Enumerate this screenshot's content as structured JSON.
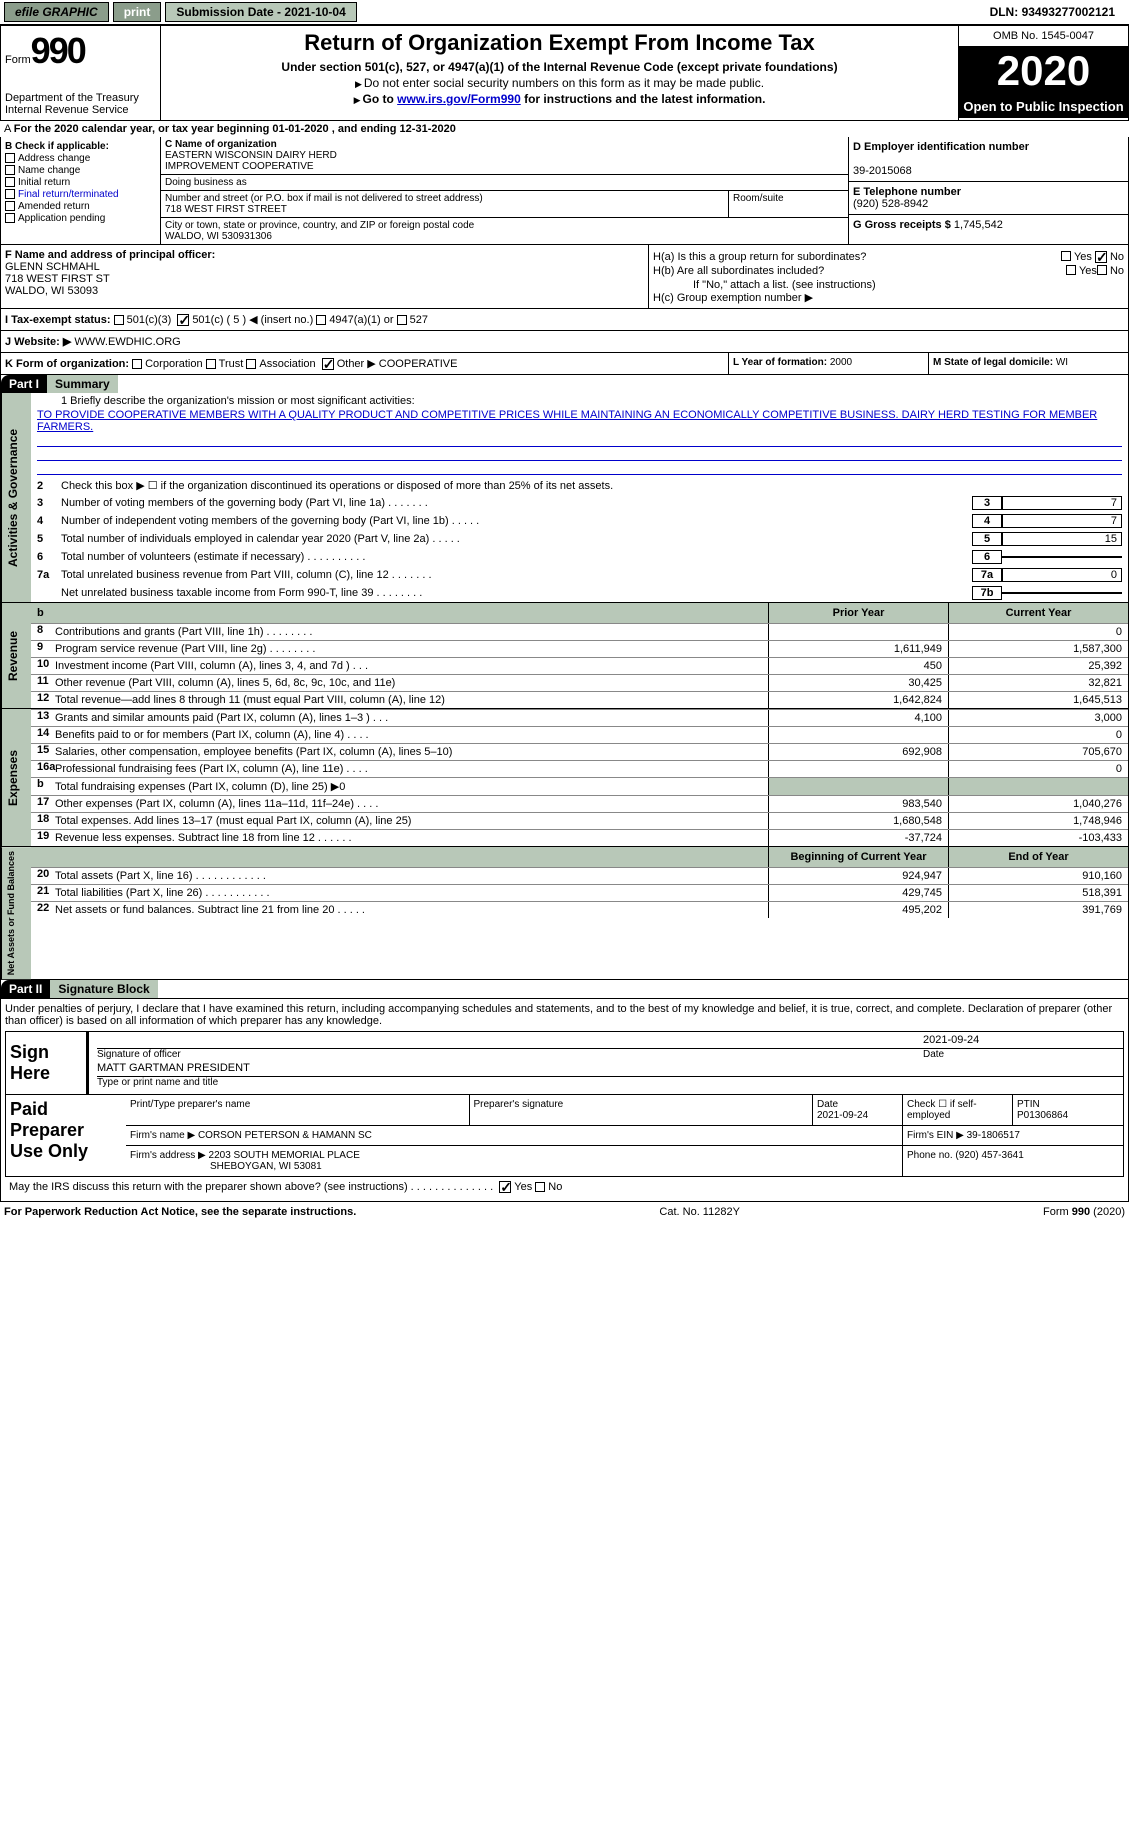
{
  "topbar": {
    "efile": "efile GRAPHIC",
    "print": "print",
    "subdate_label": "Submission Date - ",
    "subdate": "2021-10-04",
    "dln_label": "DLN: ",
    "dln": "93493277002121"
  },
  "header": {
    "form_prefix": "Form",
    "form_num": "990",
    "dept1": "Department of the Treasury",
    "dept2": "Internal Revenue Service",
    "title": "Return of Organization Exempt From Income Tax",
    "subtitle": "Under section 501(c), 527, or 4947(a)(1) of the Internal Revenue Code (except private foundations)",
    "instr1": "Do not enter social security numbers on this form as it may be made public.",
    "instr2_pre": "Go to ",
    "instr2_link": "www.irs.gov/Form990",
    "instr2_post": " for instructions and the latest information.",
    "omb": "OMB No. 1545-0047",
    "year": "2020",
    "inspection": "Open to Public Inspection"
  },
  "lineA": "For the 2020 calendar year, or tax year beginning 01-01-2020    , and ending 12-31-2020",
  "boxB": {
    "title": "B Check if applicable:",
    "opts": [
      "Address change",
      "Name change",
      "Initial return",
      "Final return/terminated",
      "Amended return",
      "Application pending"
    ]
  },
  "boxC": {
    "name_label": "C Name of organization",
    "name1": "EASTERN WISCONSIN DAIRY HERD",
    "name2": "IMPROVEMENT COOPERATIVE",
    "dba_label": "Doing business as",
    "addr_label": "Number and street (or P.O. box if mail is not delivered to street address)",
    "addr": "718 WEST FIRST STREET",
    "room_label": "Room/suite",
    "city_label": "City or town, state or province, country, and ZIP or foreign postal code",
    "city": "WALDO, WI  530931306"
  },
  "boxD": {
    "ein_label": "D Employer identification number",
    "ein": "39-2015068",
    "tel_label": "E Telephone number",
    "tel": "(920) 528-8942",
    "gross_label": "G Gross receipts $ ",
    "gross": "1,745,542"
  },
  "boxF": {
    "label": "F  Name and address of principal officer:",
    "name": "GLENN SCHMAHL",
    "addr1": "718 WEST FIRST ST",
    "addr2": "WALDO, WI  53093"
  },
  "boxH": {
    "ha": "H(a)  Is this a group return for subordinates?",
    "hb": "H(b)  Are all subordinates included?",
    "hb_note": "If \"No,\" attach a list. (see instructions)",
    "hc": "H(c)  Group exemption number ▶",
    "yes": "Yes",
    "no": "No"
  },
  "taxI": {
    "label": "I    Tax-exempt status:",
    "o1": "501(c)(3)",
    "o2": "501(c) ( 5 ) ◀ (insert no.)",
    "o3": "4947(a)(1) or",
    "o4": "527"
  },
  "lineJ": {
    "label": "J   Website: ▶",
    "val": " WWW.EWDHIC.ORG"
  },
  "lineK": {
    "label": "K Form of organization:",
    "o1": "Corporation",
    "o2": "Trust",
    "o3": "Association",
    "o4": "Other ▶",
    "val": "COOPERATIVE"
  },
  "boxL": {
    "label": "L Year of formation: ",
    "val": "2000"
  },
  "boxM": {
    "label": "M State of legal domicile: ",
    "val": "WI"
  },
  "part1": {
    "hdr": "Part I",
    "title": "Summary"
  },
  "mission": {
    "q1_label": "1   Briefly describe the organization's mission or most significant activities:",
    "text": "TO PROVIDE COOPERATIVE MEMBERS WITH A QUALITY PRODUCT AND COMPETITIVE PRICES WHILE MAINTAINING AN ECONOMICALLY COMPETITIVE BUSINESS. DAIRY HERD TESTING FOR MEMBER FARMERS."
  },
  "gov_lines": [
    {
      "n": "2",
      "t": "Check this box ▶ ☐  if the organization discontinued its operations or disposed of more than 25% of its net assets.",
      "box": "",
      "val": ""
    },
    {
      "n": "3",
      "t": "Number of voting members of the governing body (Part VI, line 1a)   .    .    .    .    .    .    .",
      "box": "3",
      "val": "7"
    },
    {
      "n": "4",
      "t": "Number of independent voting members of the governing body (Part VI, line 1b)   .    .    .    .    .",
      "box": "4",
      "val": "7"
    },
    {
      "n": "5",
      "t": "Total number of individuals employed in calendar year 2020 (Part V, line 2a)   .    .    .    .    .",
      "box": "5",
      "val": "15"
    },
    {
      "n": "6",
      "t": "Total number of volunteers (estimate if necessary)   .    .    .    .    .    .    .    .    .    .",
      "box": "6",
      "val": ""
    },
    {
      "n": "7a",
      "t": "Total unrelated business revenue from Part VIII, column (C), line 12   .    .    .    .    .    .    .",
      "box": "7a",
      "val": "0"
    },
    {
      "n": "",
      "t": "Net unrelated business taxable income from Form 990-T, line 39   .    .    .    .    .    .    .    .",
      "box": "7b",
      "val": ""
    }
  ],
  "fin_hdr": {
    "b": "b",
    "prior": "Prior Year",
    "current": "Current Year"
  },
  "revenue": [
    {
      "n": "8",
      "t": "Contributions and grants (Part VIII, line 1h)   .    .    .    .    .    .    .    .",
      "p": "",
      "c": "0"
    },
    {
      "n": "9",
      "t": "Program service revenue (Part VIII, line 2g)   .    .    .    .    .    .    .    .",
      "p": "1,611,949",
      "c": "1,587,300"
    },
    {
      "n": "10",
      "t": "Investment income (Part VIII, column (A), lines 3, 4, and 7d )   .    .    .",
      "p": "450",
      "c": "25,392"
    },
    {
      "n": "11",
      "t": "Other revenue (Part VIII, column (A), lines 5, 6d, 8c, 9c, 10c, and 11e)",
      "p": "30,425",
      "c": "32,821"
    },
    {
      "n": "12",
      "t": "Total revenue—add lines 8 through 11 (must equal Part VIII, column (A), line 12)",
      "p": "1,642,824",
      "c": "1,645,513"
    }
  ],
  "expenses": [
    {
      "n": "13",
      "t": "Grants and similar amounts paid (Part IX, column (A), lines 1–3 )   .    .    .",
      "p": "4,100",
      "c": "3,000"
    },
    {
      "n": "14",
      "t": "Benefits paid to or for members (Part IX, column (A), line 4)   .    .    .    .",
      "p": "",
      "c": "0"
    },
    {
      "n": "15",
      "t": "Salaries, other compensation, employee benefits (Part IX, column (A), lines 5–10)",
      "p": "692,908",
      "c": "705,670"
    },
    {
      "n": "16a",
      "t": "Professional fundraising fees (Part IX, column (A), line 11e)   .    .    .    .",
      "p": "",
      "c": "0"
    },
    {
      "n": "b",
      "t": "Total fundraising expenses (Part IX, column (D), line 25) ▶0",
      "p": "",
      "c": "",
      "shaded": true
    },
    {
      "n": "17",
      "t": "Other expenses (Part IX, column (A), lines 11a–11d, 11f–24e)   .    .    .    .",
      "p": "983,540",
      "c": "1,040,276"
    },
    {
      "n": "18",
      "t": "Total expenses. Add lines 13–17 (must equal Part IX, column (A), line 25)",
      "p": "1,680,548",
      "c": "1,748,946"
    },
    {
      "n": "19",
      "t": "Revenue less expenses. Subtract line 18 from line 12   .    .    .    .    .    .",
      "p": "-37,724",
      "c": "-103,433"
    }
  ],
  "net_hdr": {
    "begin": "Beginning of Current Year",
    "end": "End of Year"
  },
  "netassets": [
    {
      "n": "20",
      "t": "Total assets (Part X, line 16)   .    .    .    .    .    .    .    .    .    .    .    .",
      "p": "924,947",
      "c": "910,160"
    },
    {
      "n": "21",
      "t": "Total liabilities (Part X, line 26)   .    .    .    .    .    .    .    .    .    .    .",
      "p": "429,745",
      "c": "518,391"
    },
    {
      "n": "22",
      "t": "Net assets or fund balances. Subtract line 21 from line 20   .    .    .    .    .",
      "p": "495,202",
      "c": "391,769"
    }
  ],
  "vtabs": {
    "gov": "Activities & Governance",
    "rev": "Revenue",
    "exp": "Expenses",
    "net": "Net Assets or Fund Balances"
  },
  "part2": {
    "hdr": "Part II",
    "title": "Signature Block"
  },
  "sig": {
    "decl": "Under penalties of perjury, I declare that I have examined this return, including accompanying schedules and statements, and to the best of my knowledge and belief, it is true, correct, and complete. Declaration of preparer (other than officer) is based on all information of which preparer has any knowledge.",
    "sign_here": "Sign Here",
    "officer_label": "Signature of officer",
    "date_label": "Date",
    "date": "2021-09-24",
    "name": "MATT GARTMAN PRESIDENT",
    "name_label": "Type or print name and title",
    "paid": "Paid Preparer Use Only",
    "prep_name_label": "Print/Type preparer's name",
    "prep_sig_label": "Preparer's signature",
    "prep_date_label": "Date",
    "prep_date": "2021-09-24",
    "check_label": "Check ☐ if self-employed",
    "ptin_label": "PTIN",
    "ptin": "P01306864",
    "firm_name_label": "Firm's name    ▶ ",
    "firm_name": "CORSON PETERSON & HAMANN SC",
    "firm_ein_label": "Firm's EIN ▶ ",
    "firm_ein": "39-1806517",
    "firm_addr_label": "Firm's address ▶ ",
    "firm_addr1": "2203 SOUTH MEMORIAL PLACE",
    "firm_addr2": "SHEBOYGAN, WI  53081",
    "phone_label": "Phone no. ",
    "phone": "(920) 457-3641",
    "discuss": "May the IRS discuss this return with the preparer shown above? (see instructions)   .    .    .    .    .    .    .    .    .    .    .    .    .    .",
    "yes": "Yes",
    "no": "No"
  },
  "footer": {
    "left": "For Paperwork Reduction Act Notice, see the separate instructions.",
    "mid": "Cat. No. 11282Y",
    "right": "Form 990 (2020)"
  }
}
